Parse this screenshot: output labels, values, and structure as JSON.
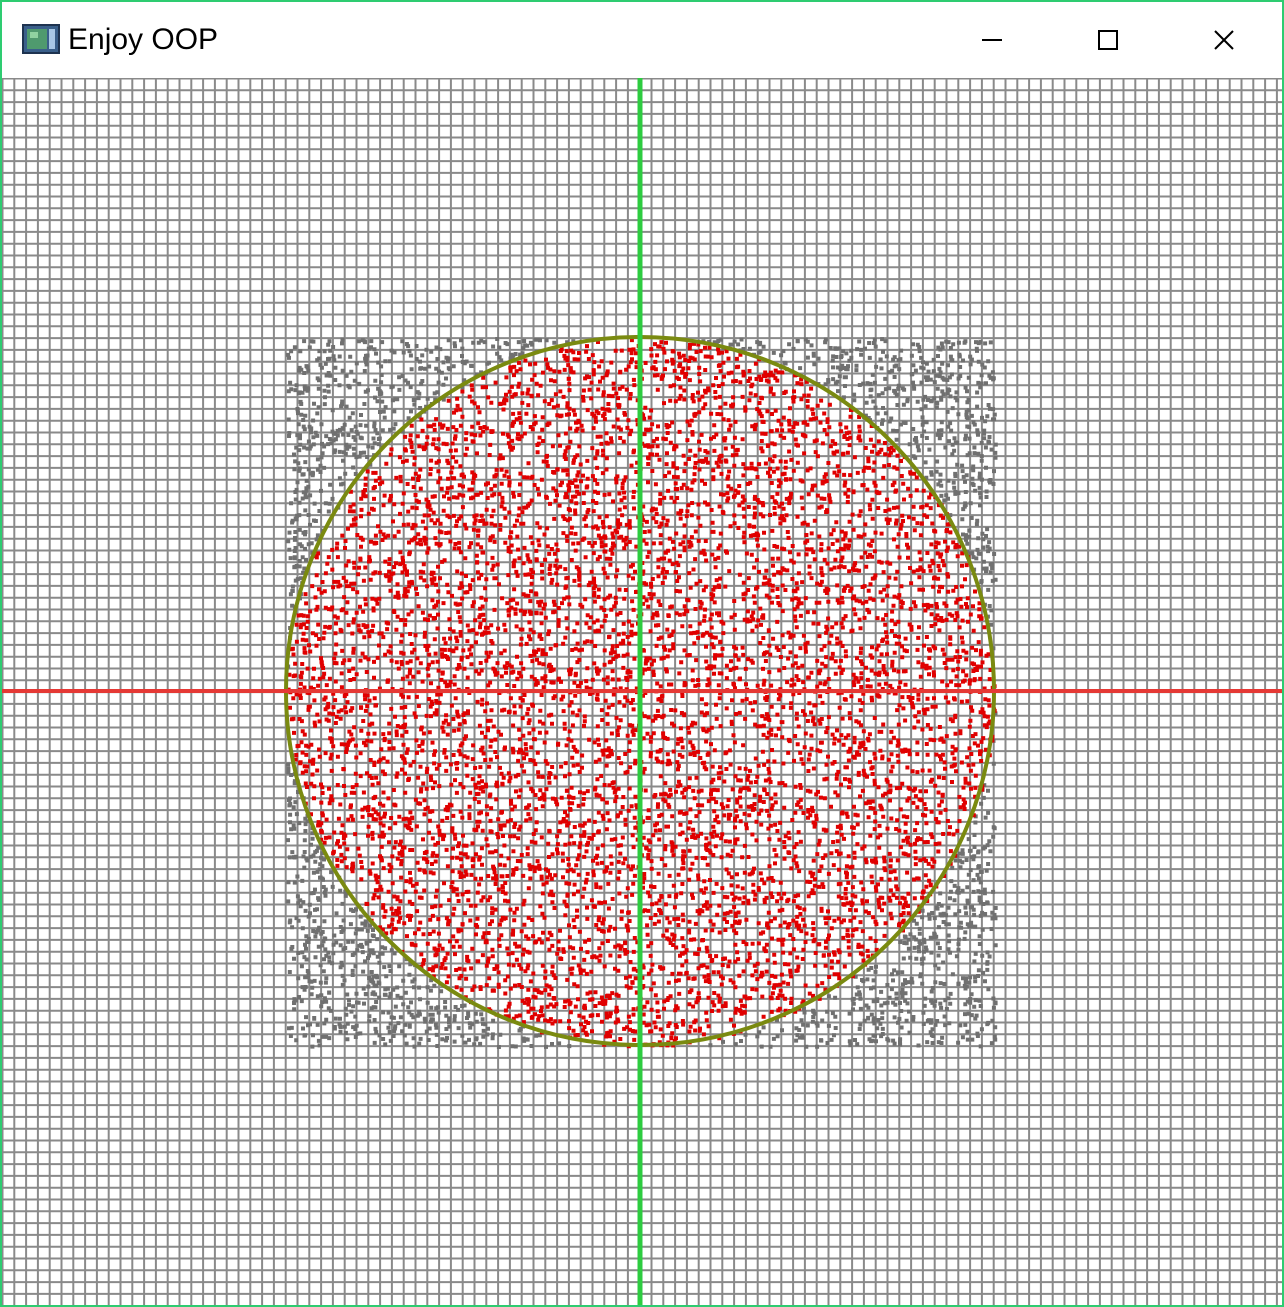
{
  "window": {
    "title": "Enjoy OOP",
    "controls": {
      "minimize": "minimize-icon",
      "maximize": "maximize-icon",
      "close": "close-icon"
    }
  },
  "simulation": {
    "description_free": true,
    "grid_color": "#8a8a8a",
    "x_axis_color": "#e53935",
    "y_axis_color": "#2ecc40",
    "circle_outline_color": "#7a8a10",
    "point_inside_color": "#e00000",
    "point_outside_color": "#707070",
    "frame_border_color": "#2ecc71"
  }
}
